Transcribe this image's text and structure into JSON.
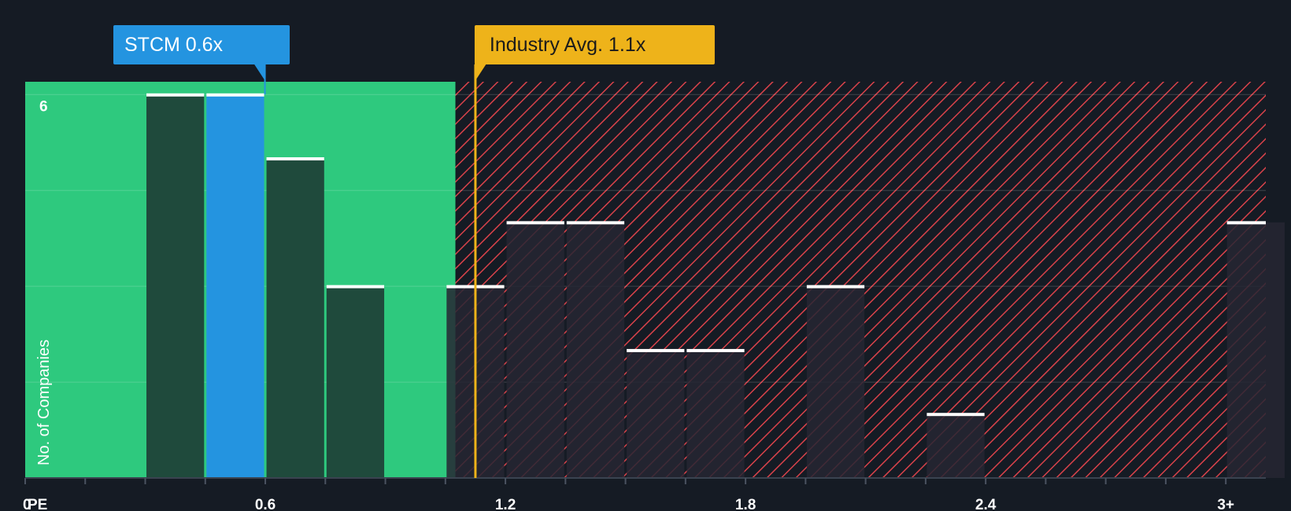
{
  "colors": {
    "background": "#151b24",
    "fair_zone": "#2ec97e",
    "over_zone_hatch": "#d9424a",
    "bar_dark": "#1f4a3c",
    "bar_highlight": "#2494e0",
    "bar_over": "#262633",
    "company_callout": "#2494e0",
    "industry_callout": "#eeb31a"
  },
  "chart_data": {
    "type": "bar",
    "title": "",
    "xlabel": "PE",
    "ylabel": "No. of Companies",
    "xlim": [
      0,
      3.1
    ],
    "ylim": [
      0,
      6.2
    ],
    "y_ticks": [
      6
    ],
    "x_ticks": [
      {
        "value": 0,
        "label": "0"
      },
      {
        "value": 0.6,
        "label": "0.6"
      },
      {
        "value": 1.2,
        "label": "1.2"
      },
      {
        "value": 1.8,
        "label": "1.8"
      },
      {
        "value": 2.4,
        "label": "2.4"
      },
      {
        "value": 3.0,
        "label": "3+"
      }
    ],
    "bin_width": 0.15,
    "bins": [
      {
        "start": 0.3,
        "count": 6,
        "highlight": false
      },
      {
        "start": 0.45,
        "count": 6,
        "highlight": true
      },
      {
        "start": 0.6,
        "count": 5,
        "highlight": false
      },
      {
        "start": 0.75,
        "count": 3,
        "highlight": false
      },
      {
        "start": 1.05,
        "count": 3,
        "highlight": false
      },
      {
        "start": 1.2,
        "count": 4,
        "highlight": false
      },
      {
        "start": 1.35,
        "count": 4,
        "highlight": false
      },
      {
        "start": 1.5,
        "count": 2,
        "highlight": false
      },
      {
        "start": 1.65,
        "count": 2,
        "highlight": false
      },
      {
        "start": 1.95,
        "count": 3,
        "highlight": false
      },
      {
        "start": 2.25,
        "count": 1,
        "highlight": false
      },
      {
        "start": 3.0,
        "count": 4,
        "highlight": false
      }
    ],
    "fair_zone_end": 1.075,
    "company": {
      "name": "STCM",
      "value": 0.6,
      "label": "STCM 0.6x"
    },
    "industry": {
      "value": 1.125,
      "label": "Industry Avg. 1.1x"
    }
  }
}
